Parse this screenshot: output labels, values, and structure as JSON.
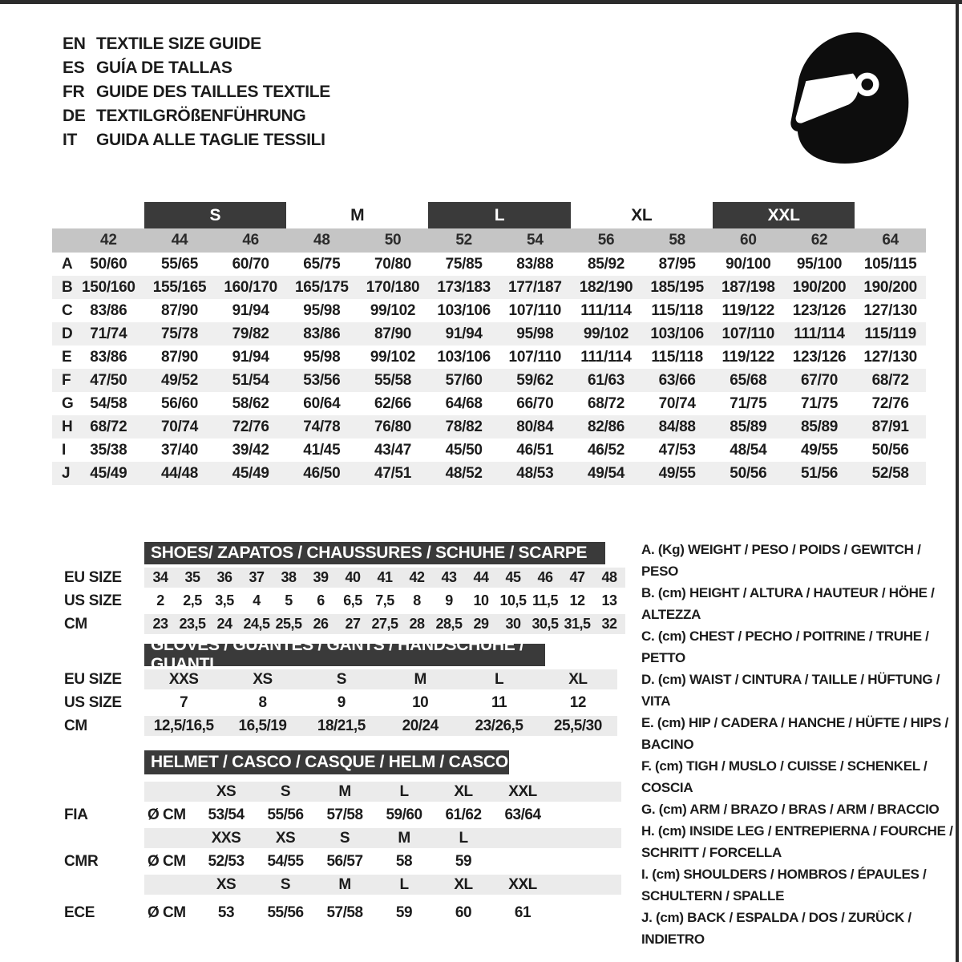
{
  "header": {
    "languages": [
      {
        "code": "EN",
        "title": "TEXTILE SIZE GUIDE"
      },
      {
        "code": "ES",
        "title": "GUÍA DE TALLAS"
      },
      {
        "code": "FR",
        "title": "GUIDE DES TAILLES TEXTILE"
      },
      {
        "code": "DE",
        "title": "TEXTILGRÖßENFÜHRUNG"
      },
      {
        "code": "IT",
        "title": "GUIDA ALLE TAGLIE TESSILI"
      }
    ],
    "helmet_icon": "full-face-racing-helmet"
  },
  "main_table": {
    "size_groups": [
      {
        "label": "S",
        "bar": true,
        "sizes": [
          "44",
          "46"
        ]
      },
      {
        "label": "M",
        "bar": false,
        "sizes": [
          "48",
          "50"
        ]
      },
      {
        "label": "L",
        "bar": true,
        "sizes": [
          "52",
          "54"
        ]
      },
      {
        "label": "XL",
        "bar": false,
        "sizes": [
          "56",
          "58"
        ]
      },
      {
        "label": "XXL",
        "bar": true,
        "sizes": [
          "60",
          "62"
        ]
      }
    ],
    "sizes": [
      "42",
      "44",
      "46",
      "48",
      "50",
      "52",
      "54",
      "56",
      "58",
      "60",
      "62",
      "64"
    ],
    "rows": [
      {
        "label": "A",
        "values": [
          "50/60",
          "55/65",
          "60/70",
          "65/75",
          "70/80",
          "75/85",
          "83/88",
          "85/92",
          "87/95",
          "90/100",
          "95/100",
          "105/115"
        ]
      },
      {
        "label": "B",
        "values": [
          "150/160",
          "155/165",
          "160/170",
          "165/175",
          "170/180",
          "173/183",
          "177/187",
          "182/190",
          "185/195",
          "187/198",
          "190/200",
          "190/200"
        ]
      },
      {
        "label": "C",
        "values": [
          "83/86",
          "87/90",
          "91/94",
          "95/98",
          "99/102",
          "103/106",
          "107/110",
          "111/114",
          "115/118",
          "119/122",
          "123/126",
          "127/130"
        ]
      },
      {
        "label": "D",
        "values": [
          "71/74",
          "75/78",
          "79/82",
          "83/86",
          "87/90",
          "91/94",
          "95/98",
          "99/102",
          "103/106",
          "107/110",
          "111/114",
          "115/119"
        ]
      },
      {
        "label": "E",
        "values": [
          "83/86",
          "87/90",
          "91/94",
          "95/98",
          "99/102",
          "103/106",
          "107/110",
          "111/114",
          "115/118",
          "119/122",
          "123/126",
          "127/130"
        ]
      },
      {
        "label": "F",
        "values": [
          "47/50",
          "49/52",
          "51/54",
          "53/56",
          "55/58",
          "57/60",
          "59/62",
          "61/63",
          "63/66",
          "65/68",
          "67/70",
          "68/72"
        ]
      },
      {
        "label": "G",
        "values": [
          "54/58",
          "56/60",
          "58/62",
          "60/64",
          "62/66",
          "64/68",
          "66/70",
          "68/72",
          "70/74",
          "71/75",
          "71/75",
          "72/76"
        ]
      },
      {
        "label": "H",
        "values": [
          "68/72",
          "70/74",
          "72/76",
          "74/78",
          "76/80",
          "78/82",
          "80/84",
          "82/86",
          "84/88",
          "85/89",
          "85/89",
          "87/91"
        ]
      },
      {
        "label": "I",
        "values": [
          "35/38",
          "37/40",
          "39/42",
          "41/45",
          "43/47",
          "45/50",
          "46/51",
          "46/52",
          "47/53",
          "48/54",
          "49/55",
          "50/56"
        ]
      },
      {
        "label": "J",
        "values": [
          "45/49",
          "44/48",
          "45/49",
          "46/50",
          "47/51",
          "48/52",
          "48/53",
          "49/54",
          "49/55",
          "50/56",
          "51/56",
          "52/58"
        ]
      }
    ]
  },
  "shoes_table": {
    "title": "SHOES/ ZAPATOS / CHAUSSURES / SCHUHE / SCARPE",
    "title_width": 575,
    "rows": [
      {
        "label": "EU SIZE",
        "shaded": true,
        "values": [
          "34",
          "35",
          "36",
          "37",
          "38",
          "39",
          "40",
          "41",
          "42",
          "43",
          "44",
          "45",
          "46",
          "47",
          "48"
        ]
      },
      {
        "label": "US SIZE",
        "shaded": false,
        "values": [
          "2",
          "2,5",
          "3,5",
          "4",
          "5",
          "6",
          "6,5",
          "7,5",
          "8",
          "9",
          "10",
          "10,5",
          "11,5",
          "12",
          "13"
        ]
      },
      {
        "label": "CM",
        "shaded": true,
        "values": [
          "23",
          "23,5",
          "24",
          "24,5",
          "25,5",
          "26",
          "27",
          "27,5",
          "28",
          "28,5",
          "29",
          "30",
          "30,5",
          "31,5",
          "32"
        ]
      }
    ]
  },
  "gloves_table": {
    "title": "GLOVES / GUANTES / GANTS / HANDSCHUHE / GUANTI",
    "title_width": 500,
    "rows": [
      {
        "label": "EU SIZE",
        "shaded": true,
        "values": [
          "XXS",
          "XS",
          "S",
          "M",
          "L",
          "XL"
        ]
      },
      {
        "label": "US SIZE",
        "shaded": false,
        "values": [
          "7",
          "8",
          "9",
          "10",
          "11",
          "12"
        ]
      },
      {
        "label": "CM",
        "shaded": true,
        "values": [
          "12,5/16,5",
          "16,5/19",
          "18/21,5",
          "20/24",
          "23/26,5",
          "25,5/30"
        ]
      }
    ]
  },
  "helmet_table": {
    "title": "HELMET / CASCO / CASQUE / HELM / CASCO",
    "title_width": 455,
    "rows": [
      {
        "label": "",
        "unit": "",
        "shaded": true,
        "values": [
          "XS",
          "S",
          "M",
          "L",
          "XL",
          "XXL"
        ]
      },
      {
        "label": "FIA",
        "unit": "Ø CM",
        "shaded": false,
        "values": [
          "53/54",
          "55/56",
          "57/58",
          "59/60",
          "61/62",
          "63/64"
        ]
      },
      {
        "label": "",
        "unit": "",
        "shaded": true,
        "values": [
          "XXS",
          "XS",
          "S",
          "M",
          "L",
          ""
        ]
      },
      {
        "label": "CMR",
        "unit": "Ø CM",
        "shaded": false,
        "values": [
          "52/53",
          "54/55",
          "56/57",
          "58",
          "59",
          ""
        ]
      },
      {
        "label": "",
        "unit": "",
        "shaded": true,
        "values": [
          "XS",
          "S",
          "M",
          "L",
          "XL",
          "XXL"
        ]
      },
      {
        "label": "ECE",
        "unit": "Ø CM",
        "shaded": false,
        "values": [
          "53",
          "55/56",
          "57/58",
          "59",
          "60",
          "61"
        ]
      }
    ]
  },
  "legend": {
    "items": [
      "A. (Kg) WEIGHT / PESO / POIDS / GEWITCH / PESO",
      "B. (cm) HEIGHT / ALTURA / HAUTEUR / HÖHE / ALTEZZA",
      "C. (cm) CHEST / PECHO / POITRINE / TRUHE / PETTO",
      "D. (cm) WAIST / CINTURA / TAILLE / HÜFTUNG / VITA",
      "E. (cm) HIP / CADERA / HANCHE / HÜFTE / HIPS / BACINO",
      "F. (cm) TIGH / MUSLO / CUISSE / SCHENKEL / COSCIA",
      "G. (cm) ARM / BRAZO / BRAS / ARM / BRACCIO",
      "H. (cm) INSIDE LEG / ENTREPIERNA / FOURCHE / SCHRITT / FORCELLA",
      "I. (cm) SHOULDERS / HOMBROS / ÉPAULES / SCHULTERN / SPALLE",
      "J. (cm) BACK / ESPALDA / DOS / ZURÜCK / INDIETRO"
    ]
  },
  "colors": {
    "frame": "#2b2b2b",
    "dark_bar": "#3a3a3a",
    "size_band_gray": "#c5c5c5",
    "row_alt_gray": "#efefef",
    "section_band_gray": "#ebebeb",
    "text": "#1c1c1c",
    "icon_black": "#0d0d0d"
  }
}
